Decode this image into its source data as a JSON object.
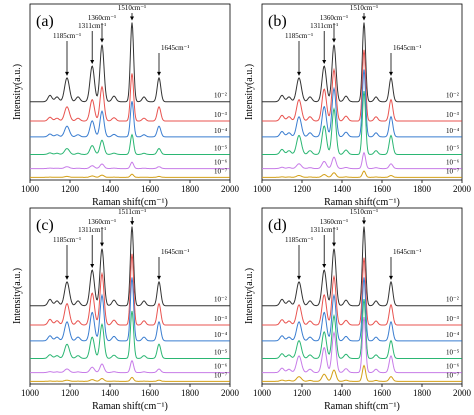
{
  "shared": {
    "xlabel": "Raman shift(cm⁻¹)",
    "ylabel": "Intensity(a.u.)",
    "xlim": [
      1000,
      2000
    ],
    "xticks": [
      "1000",
      "1200",
      "1400",
      "1600",
      "1800",
      "2000"
    ],
    "yticks_shown": false,
    "grid": false,
    "colors": [
      "#333333",
      "#e8534f",
      "#3a7dd0",
      "#2bb673",
      "#c77ce8",
      "#d4a017"
    ]
  },
  "chart_data": [
    {
      "type": "line",
      "panel": "(a)",
      "xlabel": "Raman shift(cm⁻¹)",
      "ylabel": "Intensity(a.u.)",
      "xlim": [
        1000,
        2000
      ],
      "peaks": [
        {
          "label": "1185cm⁻¹",
          "x": 1185
        },
        {
          "label": "1311cm⁻¹",
          "x": 1311
        },
        {
          "label": "1360cm⁻¹",
          "x": 1360
        },
        {
          "label": "1510cm⁻¹",
          "x": 1510
        },
        {
          "label": "1645cm⁻¹",
          "x": 1645
        }
      ],
      "series": [
        {
          "name": "10⁻²",
          "color": "#333333",
          "scale": 1.0
        },
        {
          "name": "10⁻³",
          "color": "#e8534f",
          "scale": 0.6
        },
        {
          "name": "10⁻⁴",
          "color": "#3a7dd0",
          "scale": 0.45
        },
        {
          "name": "10⁻⁵",
          "color": "#2bb673",
          "scale": 0.25
        },
        {
          "name": "10⁻⁶",
          "color": "#c77ce8",
          "scale": 0.08
        },
        {
          "name": "10⁻⁷",
          "color": "#d4a017",
          "scale": 0.04
        }
      ]
    },
    {
      "type": "line",
      "panel": "(b)",
      "xlabel": "Raman shift(cm⁻¹)",
      "ylabel": "Intensity(a.u.)",
      "xlim": [
        1000,
        2000
      ],
      "peaks": [
        {
          "label": "1185cm⁻¹",
          "x": 1185
        },
        {
          "label": "1311cm⁻¹",
          "x": 1311
        },
        {
          "label": "1360cm⁻¹",
          "x": 1360
        },
        {
          "label": "1510cm⁻¹",
          "x": 1510
        },
        {
          "label": "1645cm⁻¹",
          "x": 1645
        }
      ],
      "series": [
        {
          "name": "10⁻²",
          "color": "#333333",
          "scale": 1.0
        },
        {
          "name": "10⁻³",
          "color": "#e8534f",
          "scale": 0.9
        },
        {
          "name": "10⁻⁴",
          "color": "#3a7dd0",
          "scale": 0.85
        },
        {
          "name": "10⁻⁵",
          "color": "#2bb673",
          "scale": 0.8
        },
        {
          "name": "10⁻⁶",
          "color": "#c77ce8",
          "scale": 0.2
        },
        {
          "name": "10⁻⁷",
          "color": "#d4a017",
          "scale": 0.08
        }
      ]
    },
    {
      "type": "line",
      "panel": "(c)",
      "xlabel": "Raman shift(cm⁻¹)",
      "ylabel": "Intensity(a.u.)",
      "xlim": [
        1000,
        2000
      ],
      "peaks": [
        {
          "label": "1185cm⁻¹",
          "x": 1185
        },
        {
          "label": "1311cm⁻¹",
          "x": 1311
        },
        {
          "label": "1360cm⁻¹",
          "x": 1360
        },
        {
          "label": "1511cm⁻¹",
          "x": 1511
        },
        {
          "label": "1645cm⁻¹",
          "x": 1645
        }
      ],
      "series": [
        {
          "name": "10⁻²",
          "color": "#333333",
          "scale": 1.0
        },
        {
          "name": "10⁻³",
          "color": "#e8534f",
          "scale": 0.9
        },
        {
          "name": "10⁻⁴",
          "color": "#3a7dd0",
          "scale": 0.8
        },
        {
          "name": "10⁻⁵",
          "color": "#2bb673",
          "scale": 0.6
        },
        {
          "name": "10⁻⁶",
          "color": "#c77ce8",
          "scale": 0.15
        },
        {
          "name": "10⁻⁷",
          "color": "#d4a017",
          "scale": 0.05
        }
      ]
    },
    {
      "type": "line",
      "panel": "(d)",
      "xlabel": "Raman shift(cm⁻¹)",
      "ylabel": "Intensity(a.u.)",
      "xlim": [
        1000,
        2000
      ],
      "peaks": [
        {
          "label": "1185cm⁻¹",
          "x": 1185
        },
        {
          "label": "1311cm⁻¹",
          "x": 1311
        },
        {
          "label": "1360cm⁻¹",
          "x": 1360
        },
        {
          "label": "1510cm⁻¹",
          "x": 1510
        },
        {
          "label": "1645cm⁻¹",
          "x": 1645
        }
      ],
      "series": [
        {
          "name": "10⁻²",
          "color": "#333333",
          "scale": 1.0
        },
        {
          "name": "10⁻³",
          "color": "#e8534f",
          "scale": 0.85
        },
        {
          "name": "10⁻⁴",
          "color": "#3a7dd0",
          "scale": 0.8
        },
        {
          "name": "10⁻⁵",
          "color": "#2bb673",
          "scale": 0.75
        },
        {
          "name": "10⁻⁶",
          "color": "#c77ce8",
          "scale": 0.7
        },
        {
          "name": "10⁻⁷",
          "color": "#d4a017",
          "scale": 0.2
        }
      ]
    }
  ]
}
